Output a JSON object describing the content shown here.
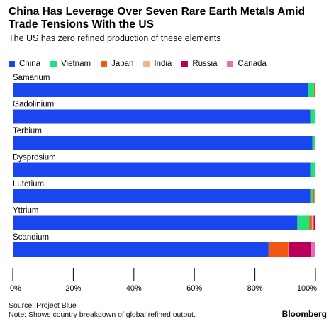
{
  "header": {
    "title": "China Has Leverage Over Seven Rare Earth Metals Amid Trade Tensions With the US",
    "subtitle": "The US has zero refined production of these elements"
  },
  "legend": [
    {
      "name": "China",
      "color": "#1a46f0"
    },
    {
      "name": "Vietnam",
      "color": "#22e07a"
    },
    {
      "name": "Japan",
      "color": "#f05a10"
    },
    {
      "name": "India",
      "color": "#f5b088"
    },
    {
      "name": "Russia",
      "color": "#b8005a"
    },
    {
      "name": "Canada",
      "color": "#e070b8"
    }
  ],
  "chart_data": {
    "type": "bar",
    "orientation": "horizontal",
    "stacked": true,
    "categories": [
      "Samarium",
      "Gadolinium",
      "Terbium",
      "Dysprosium",
      "Lutetium",
      "Yttrium",
      "Scandium"
    ],
    "series": [
      {
        "name": "China",
        "color": "#1a46f0",
        "values": [
          97.5,
          98.5,
          99.0,
          98.5,
          98.5,
          94.0,
          84.5
        ]
      },
      {
        "name": "Vietnam",
        "color": "#22e07a",
        "values": [
          2.0,
          1.5,
          1.0,
          1.5,
          0.8,
          4.0,
          0.0
        ]
      },
      {
        "name": "Japan",
        "color": "#f05a10",
        "values": [
          0.3,
          0.0,
          0.0,
          0.0,
          0.4,
          0.8,
          6.5
        ]
      },
      {
        "name": "India",
        "color": "#f5b088",
        "values": [
          0.2,
          0.0,
          0.0,
          0.0,
          0.3,
          0.6,
          0.3
        ]
      },
      {
        "name": "Russia",
        "color": "#b8005a",
        "values": [
          0.0,
          0.0,
          0.0,
          0.0,
          0.0,
          0.6,
          7.3
        ]
      },
      {
        "name": "Canada",
        "color": "#e070b8",
        "values": [
          0.0,
          0.0,
          0.0,
          0.0,
          0.0,
          0.0,
          1.4
        ]
      }
    ],
    "xlim": [
      0,
      100
    ],
    "ticks": [
      0,
      20,
      40,
      60,
      80,
      100
    ],
    "tick_labels": [
      "0%",
      "20%",
      "40%",
      "60%",
      "80%",
      "100%"
    ],
    "legend_position": "top-left",
    "grid": false
  },
  "footer": {
    "source": "Source: Project Blue",
    "note": "Note: Shows country breakdown of global refined output.",
    "brand": "Bloomberg"
  }
}
